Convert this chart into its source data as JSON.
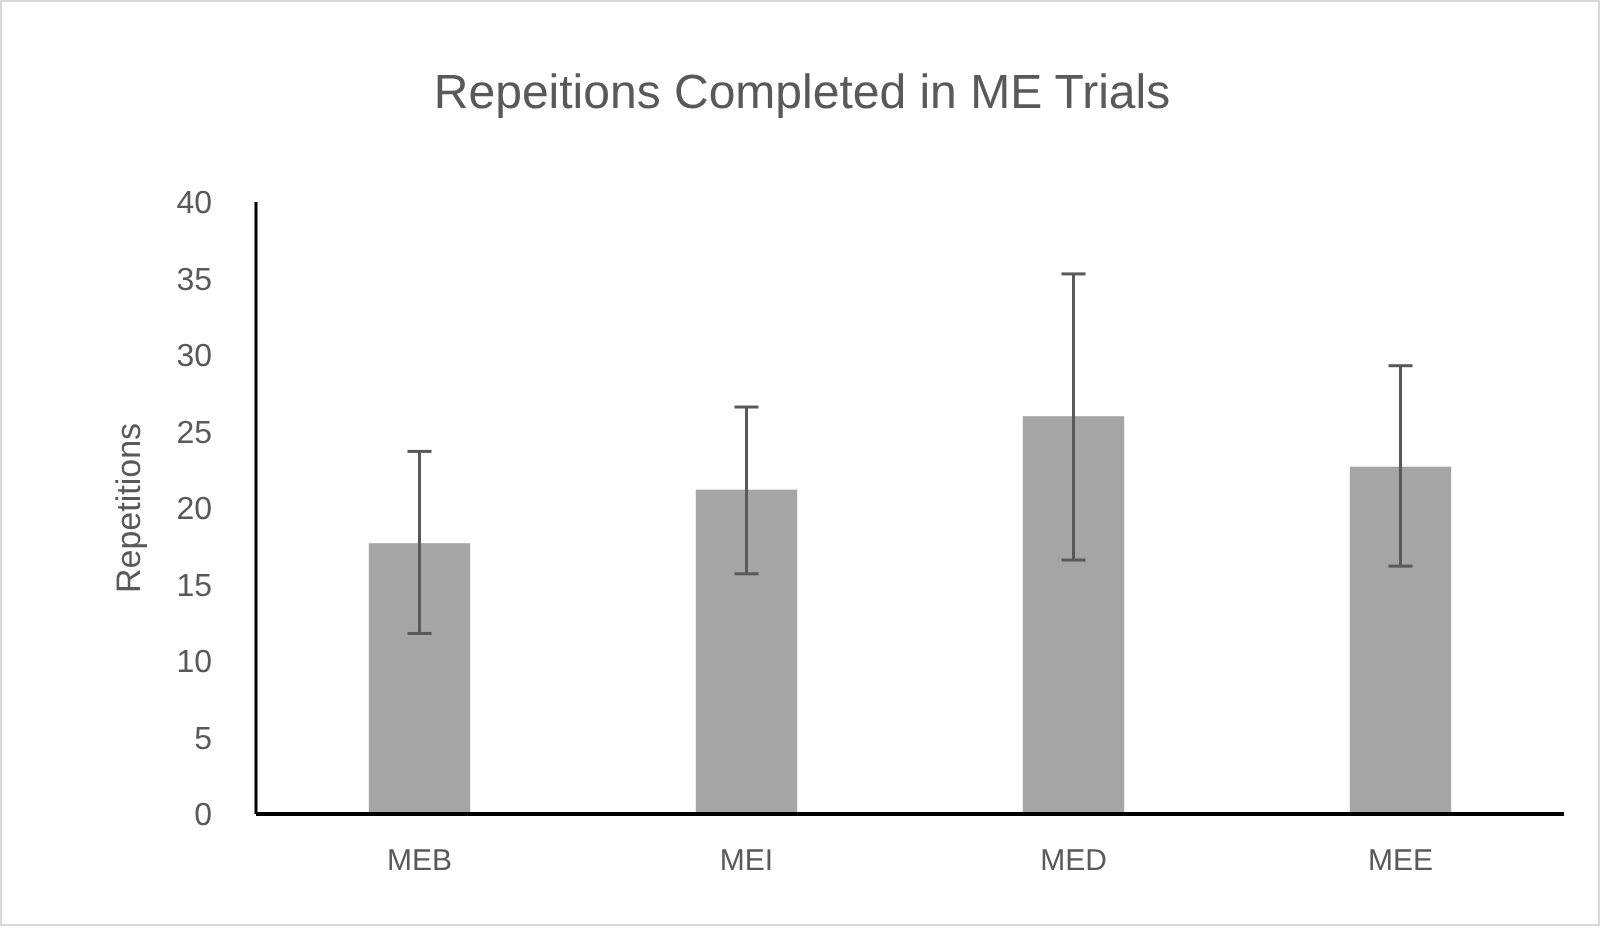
{
  "chart_data": {
    "type": "bar",
    "title": "Repeitions Completed in ME Trials",
    "ylabel": "Repetitions",
    "categories": [
      "MEB",
      "MEI",
      "MED",
      "MEE"
    ],
    "values": [
      17.7,
      21.2,
      26.0,
      22.7
    ],
    "errors": [
      [
        11.8,
        23.7
      ],
      [
        15.7,
        26.6
      ],
      [
        16.6,
        35.3
      ],
      [
        16.2,
        29.3
      ]
    ],
    "color": "#a5a5a5",
    "ylim": [
      0,
      40
    ],
    "yticks": [
      0,
      5,
      10,
      15,
      20,
      25,
      30,
      35,
      40
    ],
    "grid": false
  }
}
